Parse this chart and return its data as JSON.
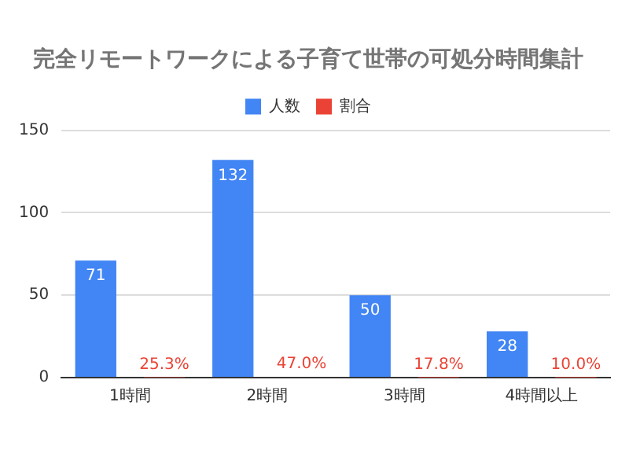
{
  "chart_data": {
    "type": "bar",
    "title": "完全リモートワークによる子育て世帯の可処分時間集計",
    "categories": [
      "1時間",
      "2時間",
      "3時間",
      "4時間以上"
    ],
    "series": [
      {
        "name": "人数",
        "color": "#4285f4",
        "values": [
          71,
          132,
          50,
          28
        ],
        "value_labels": [
          "71",
          "132",
          "50",
          "28"
        ]
      },
      {
        "name": "割合",
        "color": "#ea4335",
        "values": [
          0.253,
          0.47,
          0.178,
          0.1
        ],
        "value_labels": [
          "25.3%",
          "47.0%",
          "17.8%",
          "10.0%"
        ]
      }
    ],
    "ylim": [
      0,
      150
    ],
    "yticks": [
      0,
      50,
      100,
      150
    ],
    "grid": "y",
    "legend": "top"
  }
}
